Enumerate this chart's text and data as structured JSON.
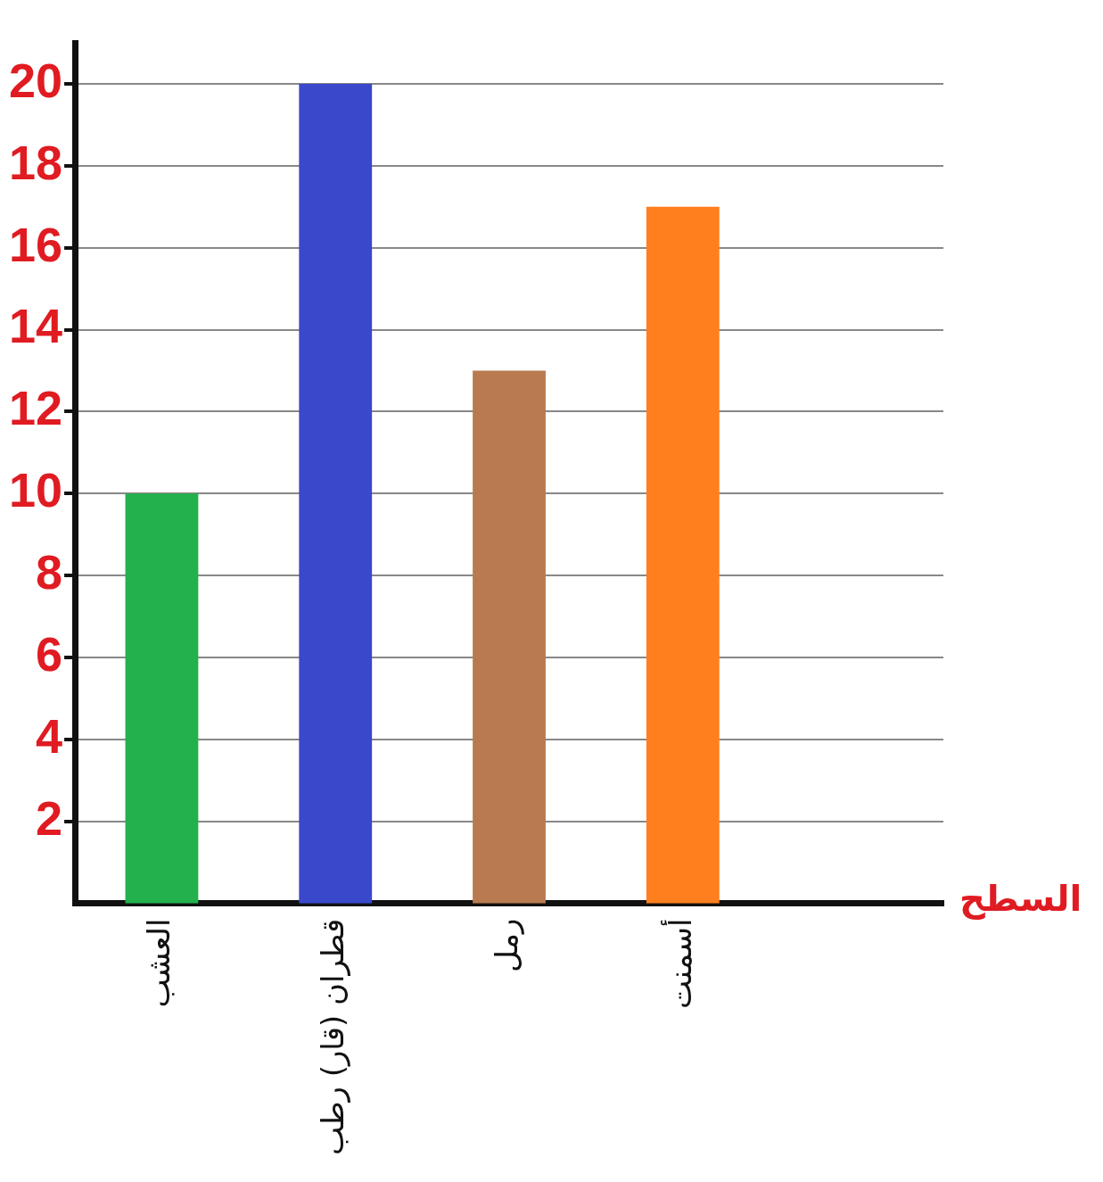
{
  "chart_data": {
    "type": "bar",
    "xlabel": "السطح",
    "categories": [
      "العشب",
      "قطران (قار) رطب",
      "رمل",
      "أسمنت",
      null
    ],
    "values": [
      10,
      20,
      13,
      17,
      null
    ],
    "colors": [
      "#22b14c",
      "#3a48cc",
      "#b97a50",
      "#ff7f1f",
      "#000000"
    ],
    "ylim": [
      0,
      21
    ],
    "yticks": [
      2,
      4,
      6,
      8,
      10,
      12,
      14,
      16,
      18,
      20
    ],
    "grid": "y",
    "legend": false
  }
}
